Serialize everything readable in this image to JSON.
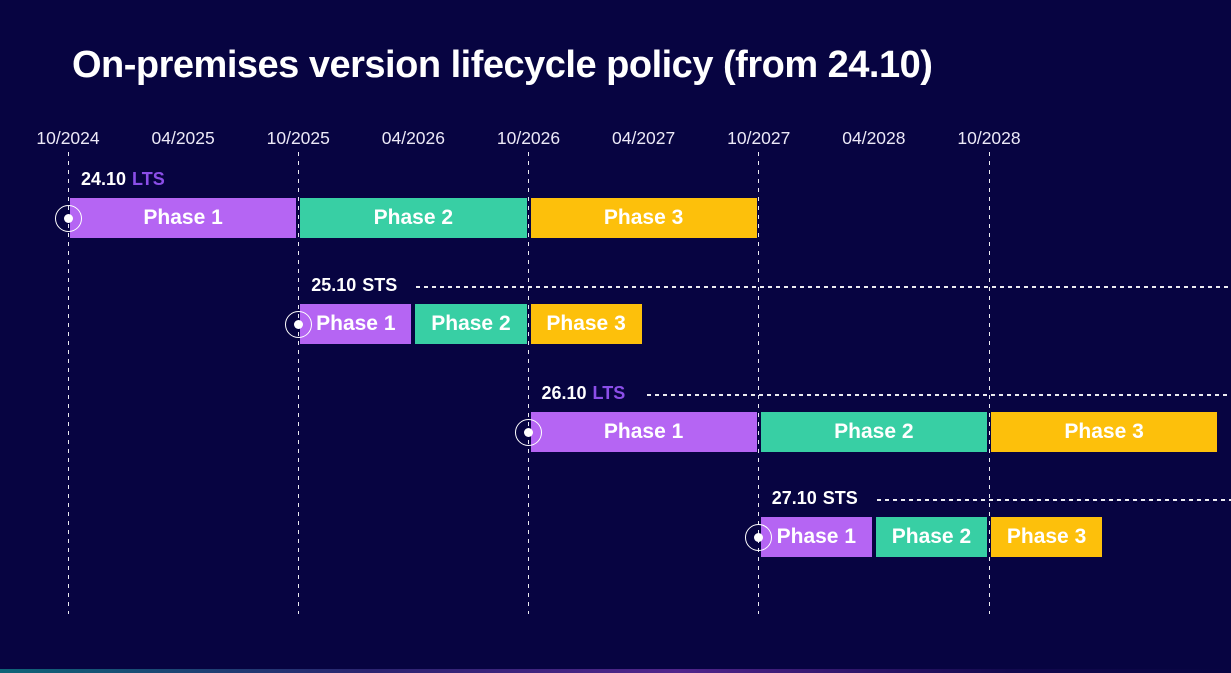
{
  "title": "On-premises version lifecycle policy (from 24.10)",
  "colors": {
    "background": "#070441",
    "phase1": "#b565f3",
    "phase2": "#38cfa4",
    "phase3": "#fdc00b",
    "lts_accent": "#8b4ee8",
    "text": "#ffffff",
    "axis_text": "#ece9f7"
  },
  "chart_data": {
    "type": "gantt",
    "title": "On-premises version lifecycle policy (from 24.10)",
    "x_axis": {
      "unit": "MM/YYYY",
      "tick_labels": [
        "10/2024",
        "04/2025",
        "10/2025",
        "04/2026",
        "10/2026",
        "04/2027",
        "10/2027",
        "04/2028",
        "10/2028"
      ],
      "gridline_ticks": [
        "10/2024",
        "10/2025",
        "10/2026",
        "10/2027",
        "10/2028"
      ],
      "range_start": "10/2024",
      "range_end": "10/2029"
    },
    "phase_colors": {
      "Phase 1": "#b565f3",
      "Phase 2": "#38cfa4",
      "Phase 3": "#fdc00b"
    },
    "legend_position": "none",
    "rows": [
      {
        "version": "24.10",
        "channel": "LTS",
        "start": "10/2024",
        "leader_line": false,
        "phases": [
          {
            "label": "Phase 1",
            "from": "10/2024",
            "to": "10/2025",
            "color_key": "phase1"
          },
          {
            "label": "Phase 2",
            "from": "10/2025",
            "to": "10/2026",
            "color_key": "phase2"
          },
          {
            "label": "Phase 3",
            "from": "10/2026",
            "to": "10/2027",
            "color_key": "phase3"
          }
        ]
      },
      {
        "version": "25.10",
        "channel": "STS",
        "start": "10/2025",
        "leader_line": true,
        "phases": [
          {
            "label": "Phase 1",
            "from": "10/2025",
            "to": "04/2026",
            "color_key": "phase1"
          },
          {
            "label": "Phase 2",
            "from": "04/2026",
            "to": "10/2026",
            "color_key": "phase2"
          },
          {
            "label": "Phase 3",
            "from": "10/2026",
            "to": "04/2027",
            "color_key": "phase3"
          }
        ]
      },
      {
        "version": "26.10",
        "channel": "LTS",
        "start": "10/2026",
        "leader_line": true,
        "phases": [
          {
            "label": "Phase 1",
            "from": "10/2026",
            "to": "10/2027",
            "color_key": "phase1"
          },
          {
            "label": "Phase 2",
            "from": "10/2027",
            "to": "10/2028",
            "color_key": "phase2"
          },
          {
            "label": "Phase 3",
            "from": "10/2028",
            "to": "10/2029",
            "color_key": "phase3"
          }
        ]
      },
      {
        "version": "27.10",
        "channel": "STS",
        "start": "10/2027",
        "leader_line": true,
        "phases": [
          {
            "label": "Phase 1",
            "from": "10/2027",
            "to": "04/2028",
            "color_key": "phase1"
          },
          {
            "label": "Phase 2",
            "from": "04/2028",
            "to": "10/2028",
            "color_key": "phase2"
          },
          {
            "label": "Phase 3",
            "from": "10/2028",
            "to": "04/2029",
            "color_key": "phase3"
          }
        ]
      }
    ]
  }
}
